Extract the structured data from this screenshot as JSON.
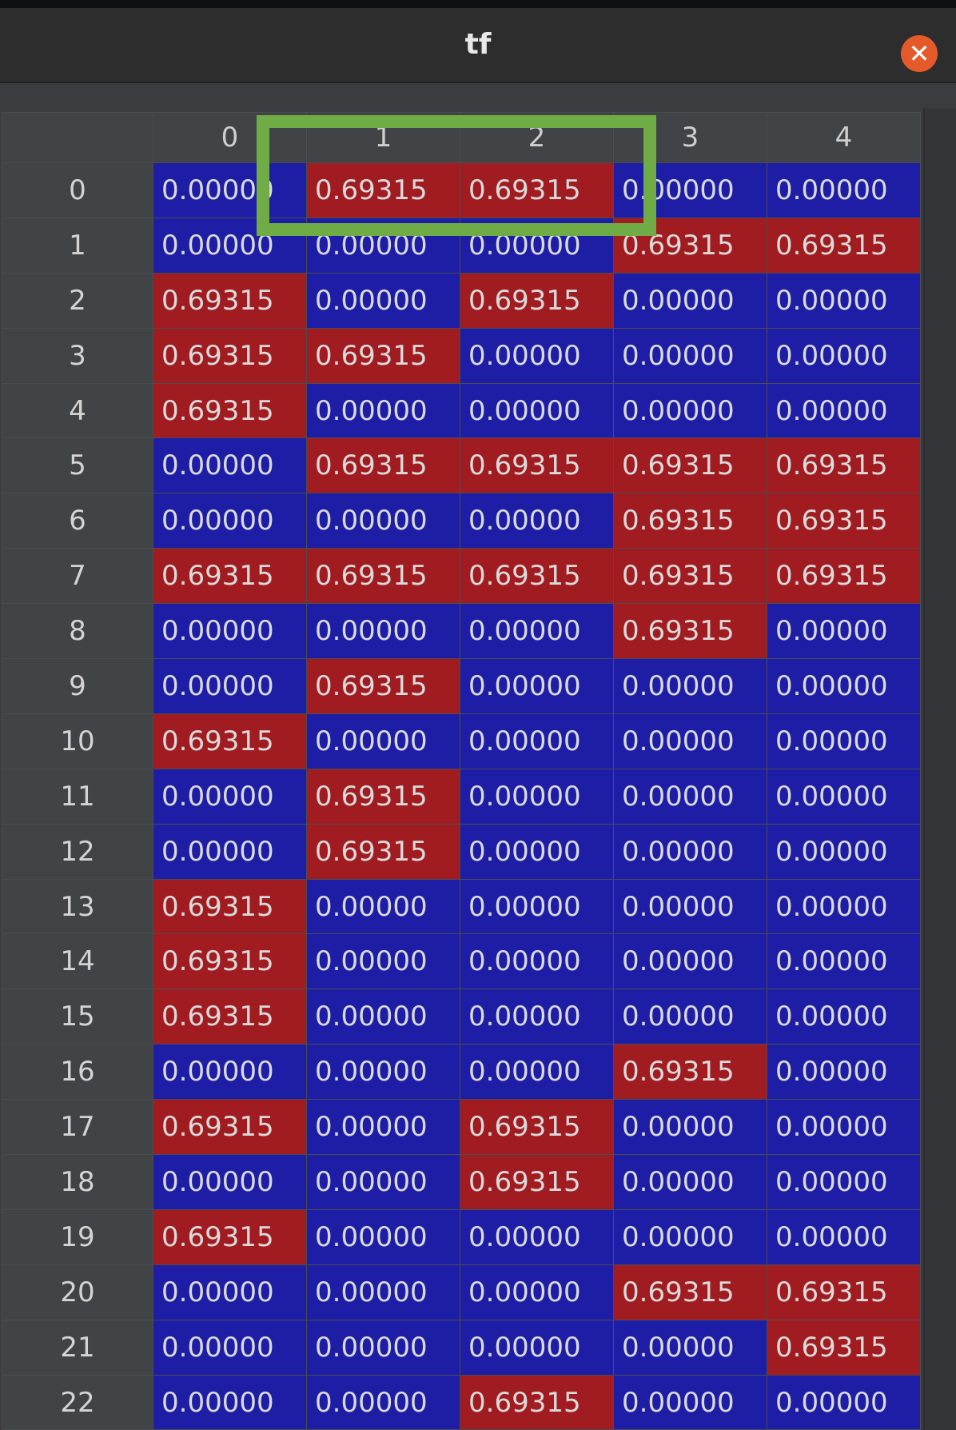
{
  "window": {
    "title": "tf",
    "close_icon": "close-icon"
  },
  "colors": {
    "low": "#1d1ea5",
    "high": "#a11c20",
    "highlight": "#6fac46",
    "close": "#e55a2b"
  },
  "table": {
    "columns": [
      "0",
      "1",
      "2",
      "3",
      "4"
    ],
    "rows": [
      {
        "label": "0",
        "cells": [
          "0.00000",
          "0.69315",
          "0.69315",
          "0.00000",
          "0.00000"
        ]
      },
      {
        "label": "1",
        "cells": [
          "0.00000",
          "0.00000",
          "0.00000",
          "0.69315",
          "0.69315"
        ]
      },
      {
        "label": "2",
        "cells": [
          "0.69315",
          "0.00000",
          "0.69315",
          "0.00000",
          "0.00000"
        ]
      },
      {
        "label": "3",
        "cells": [
          "0.69315",
          "0.69315",
          "0.00000",
          "0.00000",
          "0.00000"
        ]
      },
      {
        "label": "4",
        "cells": [
          "0.69315",
          "0.00000",
          "0.00000",
          "0.00000",
          "0.00000"
        ]
      },
      {
        "label": "5",
        "cells": [
          "0.00000",
          "0.69315",
          "0.69315",
          "0.69315",
          "0.69315"
        ]
      },
      {
        "label": "6",
        "cells": [
          "0.00000",
          "0.00000",
          "0.00000",
          "0.69315",
          "0.69315"
        ]
      },
      {
        "label": "7",
        "cells": [
          "0.69315",
          "0.69315",
          "0.69315",
          "0.69315",
          "0.69315"
        ]
      },
      {
        "label": "8",
        "cells": [
          "0.00000",
          "0.00000",
          "0.00000",
          "0.69315",
          "0.00000"
        ]
      },
      {
        "label": "9",
        "cells": [
          "0.00000",
          "0.69315",
          "0.00000",
          "0.00000",
          "0.00000"
        ]
      },
      {
        "label": "10",
        "cells": [
          "0.69315",
          "0.00000",
          "0.00000",
          "0.00000",
          "0.00000"
        ]
      },
      {
        "label": "11",
        "cells": [
          "0.00000",
          "0.69315",
          "0.00000",
          "0.00000",
          "0.00000"
        ]
      },
      {
        "label": "12",
        "cells": [
          "0.00000",
          "0.69315",
          "0.00000",
          "0.00000",
          "0.00000"
        ]
      },
      {
        "label": "13",
        "cells": [
          "0.69315",
          "0.00000",
          "0.00000",
          "0.00000",
          "0.00000"
        ]
      },
      {
        "label": "14",
        "cells": [
          "0.69315",
          "0.00000",
          "0.00000",
          "0.00000",
          "0.00000"
        ]
      },
      {
        "label": "15",
        "cells": [
          "0.69315",
          "0.00000",
          "0.00000",
          "0.00000",
          "0.00000"
        ]
      },
      {
        "label": "16",
        "cells": [
          "0.00000",
          "0.00000",
          "0.00000",
          "0.69315",
          "0.00000"
        ]
      },
      {
        "label": "17",
        "cells": [
          "0.69315",
          "0.00000",
          "0.69315",
          "0.00000",
          "0.00000"
        ]
      },
      {
        "label": "18",
        "cells": [
          "0.00000",
          "0.00000",
          "0.69315",
          "0.00000",
          "0.00000"
        ]
      },
      {
        "label": "19",
        "cells": [
          "0.69315",
          "0.00000",
          "0.00000",
          "0.00000",
          "0.00000"
        ]
      },
      {
        "label": "20",
        "cells": [
          "0.00000",
          "0.00000",
          "0.00000",
          "0.69315",
          "0.69315"
        ]
      },
      {
        "label": "21",
        "cells": [
          "0.00000",
          "0.00000",
          "0.00000",
          "0.00000",
          "0.69315"
        ]
      },
      {
        "label": "22",
        "cells": [
          "0.00000",
          "0.00000",
          "0.69315",
          "0.00000",
          "0.00000"
        ]
      }
    ]
  }
}
